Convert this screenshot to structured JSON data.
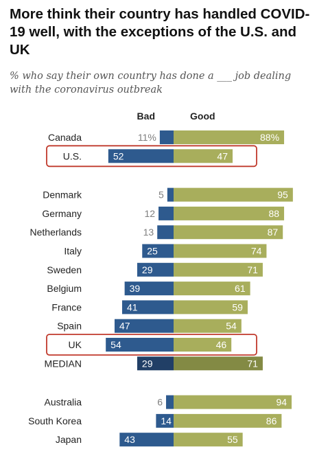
{
  "chart_data": {
    "type": "bar",
    "title": "More think their country has handled COVID-19 well, with the exceptions of the U.S. and UK",
    "subtitle": "% who say their own country has done a ___ job dealing with the coronavirus outbreak",
    "series_labels": {
      "bad": "Bad",
      "good": "Good"
    },
    "colors": {
      "bad": "#2e5a8e",
      "good": "#a8ae5c",
      "median_bad": "#213f66",
      "median_good": "#838a44",
      "highlight": "#c0392b",
      "label_gray": "#7f7f7f"
    },
    "value_range": [
      0,
      100
    ],
    "rows": [
      {
        "category": "Canada",
        "bad": 11,
        "good": 88,
        "bad_label": "11%",
        "good_label": "88%",
        "group": 0
      },
      {
        "category": "U.S.",
        "bad": 52,
        "good": 47,
        "bad_label": "52",
        "good_label": "47",
        "group": 0,
        "highlight": true
      },
      {
        "category": "Denmark",
        "bad": 5,
        "good": 95,
        "bad_label": "5",
        "good_label": "95",
        "group": 1
      },
      {
        "category": "Germany",
        "bad": 12,
        "good": 88,
        "bad_label": "12",
        "good_label": "88",
        "group": 1
      },
      {
        "category": "Netherlands",
        "bad": 13,
        "good": 87,
        "bad_label": "13",
        "good_label": "87",
        "group": 1
      },
      {
        "category": "Italy",
        "bad": 25,
        "good": 74,
        "bad_label": "25",
        "good_label": "74",
        "group": 1
      },
      {
        "category": "Sweden",
        "bad": 29,
        "good": 71,
        "bad_label": "29",
        "good_label": "71",
        "group": 1
      },
      {
        "category": "Belgium",
        "bad": 39,
        "good": 61,
        "bad_label": "39",
        "good_label": "61",
        "group": 1
      },
      {
        "category": "France",
        "bad": 41,
        "good": 59,
        "bad_label": "41",
        "good_label": "59",
        "group": 1
      },
      {
        "category": "Spain",
        "bad": 47,
        "good": 54,
        "bad_label": "47",
        "good_label": "54",
        "group": 1
      },
      {
        "category": "UK",
        "bad": 54,
        "good": 46,
        "bad_label": "54",
        "good_label": "46",
        "group": 1,
        "highlight": true
      },
      {
        "category": "MEDIAN",
        "bad": 29,
        "good": 71,
        "bad_label": "29",
        "good_label": "71",
        "group": 1,
        "median": true
      },
      {
        "category": "Australia",
        "bad": 6,
        "good": 94,
        "bad_label": "6",
        "good_label": "94",
        "group": 2
      },
      {
        "category": "South Korea",
        "bad": 14,
        "good": 86,
        "bad_label": "14",
        "good_label": "86",
        "group": 2
      },
      {
        "category": "Japan",
        "bad": 43,
        "good": 55,
        "bad_label": "43",
        "good_label": "55",
        "group": 2
      }
    ]
  }
}
